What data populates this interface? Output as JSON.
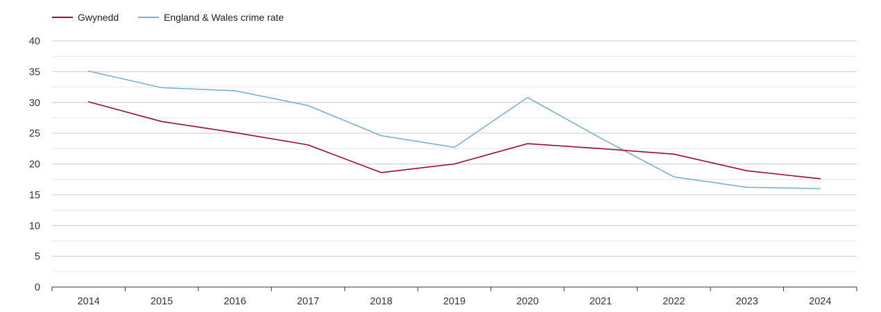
{
  "chart_data": {
    "type": "line",
    "title": "",
    "xlabel": "",
    "ylabel": "",
    "categories": [
      "2014",
      "2015",
      "2016",
      "2017",
      "2018",
      "2019",
      "2020",
      "2021",
      "2022",
      "2023",
      "2024"
    ],
    "ylim": [
      0,
      40
    ],
    "yticks": [
      0,
      5,
      10,
      15,
      20,
      25,
      30,
      35,
      40
    ],
    "grid": true,
    "legend_position": "top-left",
    "series": [
      {
        "name": "Gwynedd",
        "color": "#9b0a2b",
        "values": [
          30.1,
          26.9,
          25.1,
          23.1,
          18.6,
          20.0,
          23.3,
          22.5,
          21.6,
          18.9,
          17.6
        ]
      },
      {
        "name": "England & Wales crime rate",
        "color": "#78b0d0",
        "values": [
          35.1,
          32.4,
          31.9,
          29.5,
          24.6,
          22.7,
          30.8,
          24.2,
          17.9,
          16.2,
          16.0
        ]
      }
    ]
  }
}
